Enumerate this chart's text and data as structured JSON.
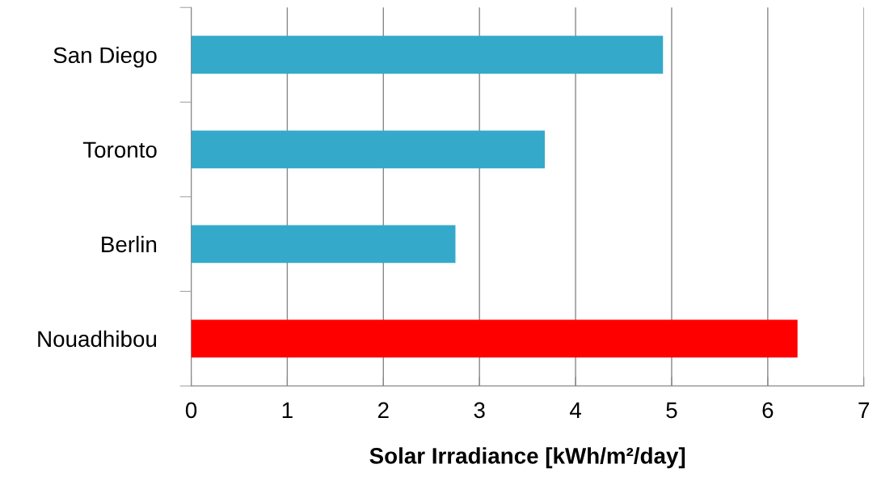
{
  "chart_data": {
    "type": "bar",
    "orientation": "horizontal",
    "xlabel": "Solar Irradiance [kWh/m²/day]",
    "categories": [
      "San Diego",
      "Toronto",
      "Berlin",
      "Nouadhibou"
    ],
    "values": [
      4.91,
      3.68,
      2.75,
      6.31
    ],
    "colors": [
      "#35a9c9",
      "#35a9c9",
      "#35a9c9",
      "#ff0000"
    ],
    "xlim": [
      0,
      7
    ],
    "xticks": [
      0,
      1,
      2,
      3,
      4,
      5,
      6,
      7
    ],
    "grid": "x"
  }
}
